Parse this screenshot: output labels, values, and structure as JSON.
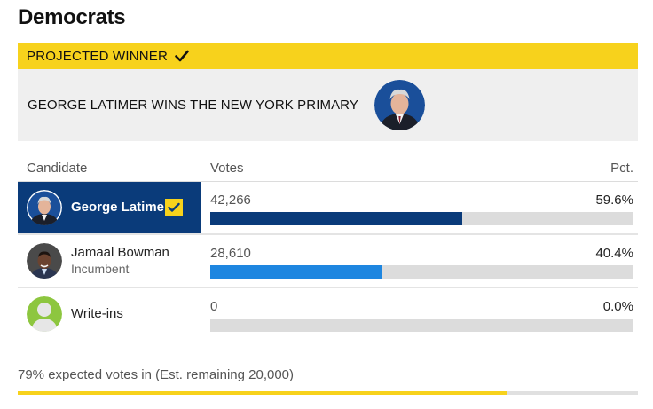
{
  "party": {
    "title": "Democrats"
  },
  "banner": {
    "label": "PROJECTED WINNER",
    "icon": "check-icon"
  },
  "winner": {
    "headline": "GEORGE LATIMER WINS THE NEW YORK PRIMARY"
  },
  "table": {
    "headers": {
      "candidate": "Candidate",
      "votes": "Votes",
      "pct": "Pct."
    },
    "rows": [
      {
        "name": "George Latimer",
        "subtitle": "",
        "votes": "42,266",
        "pct": "59.6%",
        "share": 0.596,
        "color": "#0a3b7a",
        "winner": true
      },
      {
        "name": "Jamaal Bowman",
        "subtitle": "Incumbent",
        "votes": "28,610",
        "pct": "40.4%",
        "share": 0.404,
        "color": "#1e86e0",
        "winner": false
      },
      {
        "name": "Write-ins",
        "subtitle": "",
        "votes": "0",
        "pct": "0.0%",
        "share": 0.0,
        "color": "#8dc63f",
        "winner": false
      }
    ]
  },
  "footer": {
    "expected_text": "79% expected votes in (Est. remaining 20,000)",
    "expected_share": 0.79
  },
  "colors": {
    "accent": "#f7d21c",
    "leader": "#0a3b7a",
    "second": "#1e86e0"
  }
}
